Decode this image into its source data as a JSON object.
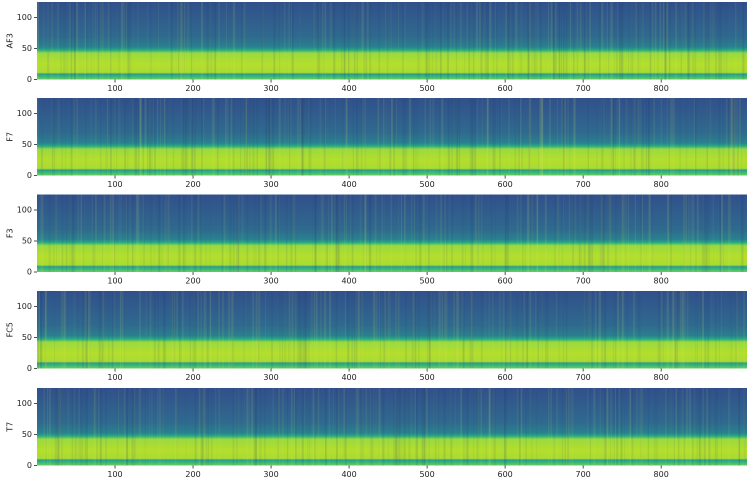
{
  "chart_data": [
    {
      "type": "spectrogram",
      "ylabel": "AF3",
      "xlim": [
        0,
        910
      ],
      "ylim": [
        0,
        125
      ],
      "xticks": [
        100,
        200,
        300,
        400,
        500,
        600,
        700,
        800
      ],
      "yticks": [
        0,
        50,
        100
      ]
    },
    {
      "type": "spectrogram",
      "ylabel": "F7",
      "xlim": [
        0,
        910
      ],
      "ylim": [
        0,
        125
      ],
      "xticks": [
        100,
        200,
        300,
        400,
        500,
        600,
        700,
        800
      ],
      "yticks": [
        0,
        50,
        100
      ]
    },
    {
      "type": "spectrogram",
      "ylabel": "F3",
      "xlim": [
        0,
        910
      ],
      "ylim": [
        0,
        125
      ],
      "xticks": [
        100,
        200,
        300,
        400,
        500,
        600,
        700,
        800
      ],
      "yticks": [
        0,
        50,
        100
      ]
    },
    {
      "type": "spectrogram",
      "ylabel": "FC5",
      "xlim": [
        0,
        910
      ],
      "ylim": [
        0,
        125
      ],
      "xticks": [
        100,
        200,
        300,
        400,
        500,
        600,
        700,
        800
      ],
      "yticks": [
        0,
        50,
        100
      ]
    },
    {
      "type": "spectrogram",
      "ylabel": "T7",
      "xlim": [
        0,
        910
      ],
      "ylim": [
        0,
        125
      ],
      "xticks": [
        100,
        200,
        300,
        400,
        500,
        600,
        700,
        800
      ],
      "yticks": [
        0,
        50,
        100
      ]
    }
  ]
}
